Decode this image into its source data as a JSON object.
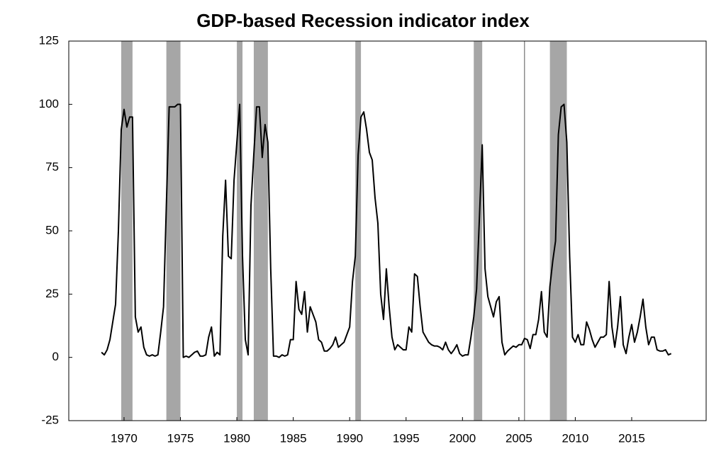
{
  "chart_data": {
    "type": "line",
    "title": "GDP-based Recession indicator index",
    "xlim": [
      1965.1,
      2021.6
    ],
    "xticks": [
      1970,
      1975,
      1980,
      1985,
      1990,
      1995,
      2000,
      2005,
      2010,
      2015
    ],
    "ylim": [
      -25,
      125
    ],
    "yticks": [
      -25,
      0,
      25,
      50,
      75,
      100,
      125
    ],
    "shading": [
      [
        1969.75,
        1970.75
      ],
      [
        1973.75,
        1975.0
      ],
      [
        1980.0,
        1980.5
      ],
      [
        1981.5,
        1982.75
      ],
      [
        1990.5,
        1991.0
      ],
      [
        2001.0,
        2001.75
      ],
      [
        2007.75,
        2009.25
      ]
    ],
    "shading_color": "#a6a6a6",
    "vertical_line": 2005.5,
    "x": [
      1968,
      1968.25,
      1968.5,
      1968.75,
      1969,
      1969.25,
      1969.5,
      1969.75,
      1970,
      1970.25,
      1970.5,
      1970.75,
      1971,
      1971.25,
      1971.5,
      1971.75,
      1972,
      1972.25,
      1972.5,
      1972.75,
      1973,
      1973.25,
      1973.5,
      1973.75,
      1974,
      1974.25,
      1974.5,
      1974.75,
      1975,
      1975.25,
      1975.5,
      1975.75,
      1976,
      1976.25,
      1976.5,
      1976.75,
      1977,
      1977.25,
      1977.5,
      1977.75,
      1978,
      1978.25,
      1978.5,
      1978.75,
      1979,
      1979.25,
      1979.5,
      1979.75,
      1980,
      1980.25,
      1980.5,
      1980.75,
      1981,
      1981.25,
      1981.5,
      1981.75,
      1982,
      1982.25,
      1982.5,
      1982.75,
      1983,
      1983.25,
      1983.5,
      1983.75,
      1984,
      1984.25,
      1984.5,
      1984.75,
      1985,
      1985.25,
      1985.5,
      1985.75,
      1986,
      1986.25,
      1986.5,
      1986.75,
      1987,
      1987.25,
      1987.5,
      1987.75,
      1988,
      1988.25,
      1988.5,
      1988.75,
      1989,
      1989.25,
      1989.5,
      1989.75,
      1990,
      1990.25,
      1990.5,
      1990.75,
      1991,
      1991.25,
      1991.5,
      1991.75,
      1992,
      1992.25,
      1992.5,
      1992.75,
      1993,
      1993.25,
      1993.5,
      1993.75,
      1994,
      1994.25,
      1994.5,
      1994.75,
      1995,
      1995.25,
      1995.5,
      1995.75,
      1996,
      1996.25,
      1996.5,
      1996.75,
      1997,
      1997.25,
      1997.5,
      1997.75,
      1998,
      1998.25,
      1998.5,
      1998.75,
      1999,
      1999.25,
      1999.5,
      1999.75,
      2000,
      2000.25,
      2000.5,
      2000.75,
      2001,
      2001.25,
      2001.5,
      2001.75,
      2002,
      2002.25,
      2002.5,
      2002.75,
      2003,
      2003.25,
      2003.5,
      2003.75,
      2004,
      2004.25,
      2004.5,
      2004.75,
      2005,
      2005.25,
      2005.5,
      2005.75,
      2006,
      2006.25,
      2006.5,
      2006.75,
      2007,
      2007.25,
      2007.5,
      2007.75,
      2008,
      2008.25,
      2008.5,
      2008.75,
      2009,
      2009.25,
      2009.5,
      2009.75,
      2010,
      2010.25,
      2010.5,
      2010.75,
      2011,
      2011.25,
      2011.5,
      2011.75,
      2012,
      2012.25,
      2012.5,
      2012.75,
      2013,
      2013.25,
      2013.5,
      2013.75,
      2014,
      2014.25,
      2014.5,
      2014.75,
      2015,
      2015.25,
      2015.5,
      2015.75,
      2016,
      2016.25,
      2016.5,
      2016.75,
      2017,
      2017.25,
      2017.5,
      2017.75,
      2018,
      2018.25,
      2018.5
    ],
    "series": [
      {
        "color": "#000000",
        "values": [
          2,
          1,
          3,
          7,
          14,
          21,
          50,
          90,
          98,
          91,
          95,
          95,
          16,
          10,
          12,
          4,
          1,
          0.5,
          1,
          0.5,
          1,
          10,
          20,
          60,
          99,
          99,
          99,
          100,
          100,
          0,
          0.5,
          0,
          1,
          2,
          2.5,
          0.5,
          0.5,
          1,
          8,
          12,
          0.5,
          2,
          1,
          48,
          70,
          40,
          39,
          70,
          85,
          100,
          40,
          7,
          1,
          60,
          80,
          99,
          99,
          79,
          92,
          85,
          35,
          0.5,
          0.5,
          0,
          1,
          0.5,
          1,
          7,
          7,
          30,
          19,
          17,
          26,
          10,
          20,
          17,
          14,
          7,
          6,
          2.5,
          2.5,
          3.5,
          5,
          8,
          4,
          5,
          6,
          9,
          12,
          30,
          40,
          80,
          95,
          97,
          90,
          81,
          78,
          63,
          53,
          25,
          15,
          35,
          20,
          8,
          3,
          5,
          4,
          3,
          3,
          12,
          10,
          33,
          32,
          20,
          10,
          8,
          6,
          5,
          4.5,
          4.5,
          4,
          3,
          6,
          3,
          1.5,
          3,
          5,
          1.5,
          0.5,
          1,
          1,
          8,
          16,
          27,
          55,
          84,
          35,
          24,
          20,
          16,
          22,
          24,
          6,
          1,
          2.5,
          3.5,
          4.5,
          4,
          5,
          5,
          7.5,
          7,
          3.5,
          9,
          9,
          15,
          26,
          10,
          8,
          28,
          38,
          46,
          88,
          99,
          100,
          85,
          40,
          8,
          6,
          9,
          5,
          5,
          14,
          11,
          7,
          4,
          6,
          8,
          8,
          9,
          30,
          12,
          4,
          12,
          24,
          5,
          1.5,
          8,
          13,
          6,
          10,
          16,
          23,
          12,
          5,
          8,
          8,
          3,
          2.5,
          2.5,
          3,
          1,
          1.5
        ]
      }
    ]
  }
}
